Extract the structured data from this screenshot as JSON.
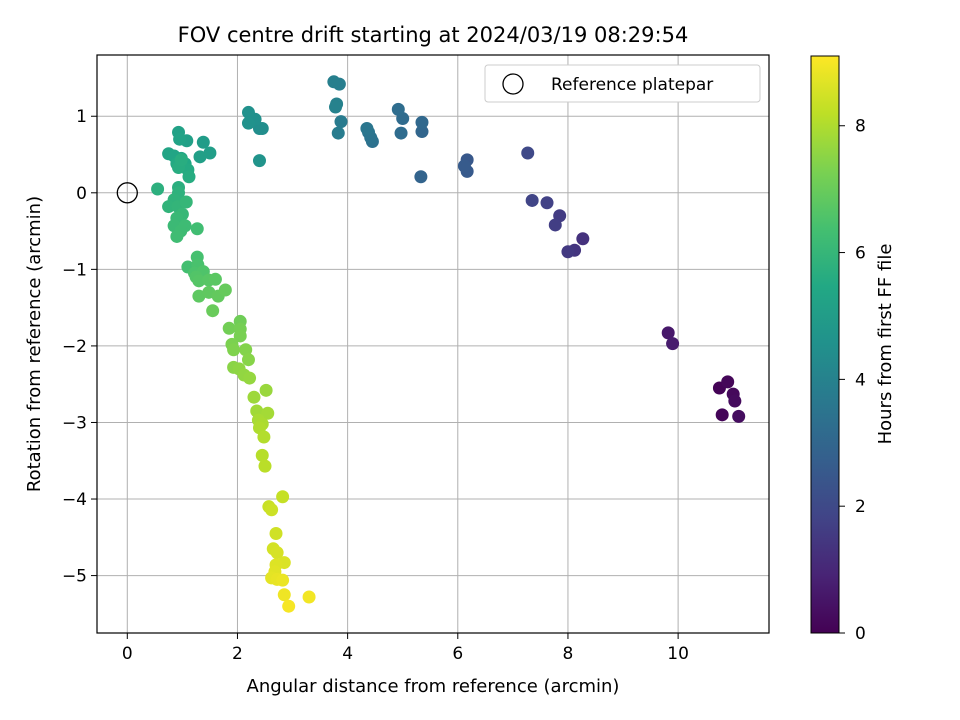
{
  "chart_data": {
    "type": "scatter",
    "title": "FOV centre drift starting at 2024/03/19 08:29:54",
    "xlabel": "Angular distance from reference (arcmin)",
    "ylabel": "Rotation from reference (arcmin)",
    "xlim": [
      -0.55,
      11.65
    ],
    "ylim": [
      -5.75,
      1.8
    ],
    "xticks": [
      0,
      2,
      4,
      6,
      8,
      10
    ],
    "yticks": [
      -5,
      -4,
      -3,
      -2,
      -1,
      0,
      1
    ],
    "grid": true,
    "legend": {
      "label": "Reference platepar",
      "placement": "top-right"
    },
    "reference_point": {
      "x": 0,
      "y": 0
    },
    "colorbar": {
      "label": "Hours from first FF file",
      "range": [
        0,
        9.1
      ],
      "ticks": [
        0,
        2,
        4,
        6,
        8
      ],
      "colormap": "viridis"
    },
    "points": [
      {
        "x": 10.75,
        "y": -2.55,
        "t": 0.05
      },
      {
        "x": 10.8,
        "y": -2.9,
        "t": 0.1
      },
      {
        "x": 10.9,
        "y": -2.47,
        "t": 0.15
      },
      {
        "x": 11.0,
        "y": -2.63,
        "t": 0.2
      },
      {
        "x": 11.03,
        "y": -2.72,
        "t": 0.25
      },
      {
        "x": 11.1,
        "y": -2.92,
        "t": 0.3
      },
      {
        "x": 9.82,
        "y": -1.83,
        "t": 0.6
      },
      {
        "x": 9.9,
        "y": -1.97,
        "t": 0.7
      },
      {
        "x": 8.27,
        "y": -0.6,
        "t": 1.3
      },
      {
        "x": 8.12,
        "y": -0.75,
        "t": 1.4
      },
      {
        "x": 8.0,
        "y": -0.77,
        "t": 1.5
      },
      {
        "x": 7.85,
        "y": -0.3,
        "t": 1.6
      },
      {
        "x": 7.77,
        "y": -0.42,
        "t": 1.65
      },
      {
        "x": 7.62,
        "y": -0.13,
        "t": 1.75
      },
      {
        "x": 7.35,
        "y": -0.1,
        "t": 1.85
      },
      {
        "x": 7.27,
        "y": 0.52,
        "t": 2.0
      },
      {
        "x": 6.17,
        "y": 0.43,
        "t": 2.5
      },
      {
        "x": 6.17,
        "y": 0.28,
        "t": 2.55
      },
      {
        "x": 6.12,
        "y": 0.35,
        "t": 2.6
      },
      {
        "x": 5.33,
        "y": 0.21,
        "t": 2.9
      },
      {
        "x": 5.35,
        "y": 0.8,
        "t": 3.0
      },
      {
        "x": 5.35,
        "y": 0.92,
        "t": 3.05
      },
      {
        "x": 5.0,
        "y": 0.97,
        "t": 3.15
      },
      {
        "x": 4.97,
        "y": 0.78,
        "t": 3.2
      },
      {
        "x": 4.92,
        "y": 1.09,
        "t": 3.25
      },
      {
        "x": 4.45,
        "y": 0.67,
        "t": 3.4
      },
      {
        "x": 4.42,
        "y": 0.72,
        "t": 3.45
      },
      {
        "x": 4.38,
        "y": 0.79,
        "t": 3.5
      },
      {
        "x": 4.35,
        "y": 0.84,
        "t": 3.55
      },
      {
        "x": 3.88,
        "y": 0.93,
        "t": 3.75
      },
      {
        "x": 3.83,
        "y": 0.78,
        "t": 3.8
      },
      {
        "x": 3.85,
        "y": 1.42,
        "t": 3.85
      },
      {
        "x": 3.75,
        "y": 1.45,
        "t": 3.9
      },
      {
        "x": 3.8,
        "y": 1.16,
        "t": 3.95
      },
      {
        "x": 3.78,
        "y": 1.12,
        "t": 4.0
      },
      {
        "x": 2.4,
        "y": 0.84,
        "t": 4.4
      },
      {
        "x": 2.45,
        "y": 0.84,
        "t": 4.45
      },
      {
        "x": 2.32,
        "y": 0.96,
        "t": 4.5
      },
      {
        "x": 2.2,
        "y": 1.05,
        "t": 4.55
      },
      {
        "x": 2.2,
        "y": 0.91,
        "t": 4.6
      },
      {
        "x": 2.4,
        "y": 0.42,
        "t": 4.65
      },
      {
        "x": 1.38,
        "y": 0.66,
        "t": 5.0
      },
      {
        "x": 1.5,
        "y": 0.52,
        "t": 5.05
      },
      {
        "x": 1.32,
        "y": 0.47,
        "t": 5.1
      },
      {
        "x": 1.08,
        "y": 0.68,
        "t": 5.15
      },
      {
        "x": 0.93,
        "y": 0.79,
        "t": 5.2
      },
      {
        "x": 0.95,
        "y": 0.7,
        "t": 5.25
      },
      {
        "x": 0.75,
        "y": 0.51,
        "t": 5.3
      },
      {
        "x": 0.85,
        "y": 0.48,
        "t": 5.35
      },
      {
        "x": 0.98,
        "y": 0.45,
        "t": 5.4
      },
      {
        "x": 1.05,
        "y": 0.38,
        "t": 5.45
      },
      {
        "x": 0.9,
        "y": 0.38,
        "t": 5.5
      },
      {
        "x": 1.1,
        "y": 0.3,
        "t": 5.55
      },
      {
        "x": 1.12,
        "y": 0.21,
        "t": 5.6
      },
      {
        "x": 0.93,
        "y": 0.33,
        "t": 5.62
      },
      {
        "x": 0.98,
        "y": 0.43,
        "t": 5.65
      },
      {
        "x": 0.93,
        "y": 0.07,
        "t": 5.7
      },
      {
        "x": 0.55,
        "y": 0.05,
        "t": 5.75
      },
      {
        "x": 0.93,
        "y": 0.0,
        "t": 5.8
      },
      {
        "x": 0.85,
        "y": -0.09,
        "t": 5.85
      },
      {
        "x": 0.75,
        "y": -0.18,
        "t": 5.9
      },
      {
        "x": 0.92,
        "y": -0.18,
        "t": 5.95
      },
      {
        "x": 1.07,
        "y": -0.12,
        "t": 6.0
      },
      {
        "x": 1.0,
        "y": -0.28,
        "t": 6.05
      },
      {
        "x": 0.9,
        "y": -0.33,
        "t": 6.1
      },
      {
        "x": 0.85,
        "y": -0.43,
        "t": 6.15
      },
      {
        "x": 1.05,
        "y": -0.43,
        "t": 6.2
      },
      {
        "x": 0.97,
        "y": -0.5,
        "t": 6.22
      },
      {
        "x": 0.9,
        "y": -0.57,
        "t": 6.25
      },
      {
        "x": 1.27,
        "y": -0.47,
        "t": 6.3
      },
      {
        "x": 1.1,
        "y": -0.97,
        "t": 6.35
      },
      {
        "x": 1.27,
        "y": -0.84,
        "t": 6.4
      },
      {
        "x": 1.28,
        "y": -0.94,
        "t": 6.45
      },
      {
        "x": 1.22,
        "y": -1.05,
        "t": 6.5
      },
      {
        "x": 1.38,
        "y": -1.03,
        "t": 6.55
      },
      {
        "x": 1.25,
        "y": -1.1,
        "t": 6.6
      },
      {
        "x": 1.3,
        "y": -1.15,
        "t": 6.65
      },
      {
        "x": 1.48,
        "y": -1.14,
        "t": 6.7
      },
      {
        "x": 1.6,
        "y": -1.13,
        "t": 6.75
      },
      {
        "x": 1.3,
        "y": -1.35,
        "t": 6.8
      },
      {
        "x": 1.48,
        "y": -1.3,
        "t": 6.85
      },
      {
        "x": 1.65,
        "y": -1.35,
        "t": 6.9
      },
      {
        "x": 1.78,
        "y": -1.27,
        "t": 6.95
      },
      {
        "x": 1.55,
        "y": -1.54,
        "t": 7.0
      },
      {
        "x": 2.05,
        "y": -1.68,
        "t": 7.1
      },
      {
        "x": 1.85,
        "y": -1.77,
        "t": 7.15
      },
      {
        "x": 2.05,
        "y": -1.78,
        "t": 7.2
      },
      {
        "x": 2.05,
        "y": -1.87,
        "t": 7.25
      },
      {
        "x": 1.9,
        "y": -1.98,
        "t": 7.3
      },
      {
        "x": 1.93,
        "y": -2.05,
        "t": 7.35
      },
      {
        "x": 2.15,
        "y": -2.05,
        "t": 7.4
      },
      {
        "x": 2.2,
        "y": -2.18,
        "t": 7.45
      },
      {
        "x": 1.93,
        "y": -2.28,
        "t": 7.5
      },
      {
        "x": 2.03,
        "y": -2.3,
        "t": 7.55
      },
      {
        "x": 2.12,
        "y": -2.38,
        "t": 7.6
      },
      {
        "x": 2.22,
        "y": -2.42,
        "t": 7.65
      },
      {
        "x": 2.52,
        "y": -2.58,
        "t": 7.7
      },
      {
        "x": 2.3,
        "y": -2.67,
        "t": 7.75
      },
      {
        "x": 2.35,
        "y": -2.85,
        "t": 7.8
      },
      {
        "x": 2.55,
        "y": -2.88,
        "t": 7.85
      },
      {
        "x": 2.38,
        "y": -2.97,
        "t": 7.9
      },
      {
        "x": 2.45,
        "y": -3.02,
        "t": 7.95
      },
      {
        "x": 2.4,
        "y": -3.07,
        "t": 8.0
      },
      {
        "x": 2.48,
        "y": -3.19,
        "t": 8.05
      },
      {
        "x": 2.45,
        "y": -3.43,
        "t": 8.1
      },
      {
        "x": 2.5,
        "y": -3.57,
        "t": 8.15
      },
      {
        "x": 2.82,
        "y": -3.97,
        "t": 8.3
      },
      {
        "x": 2.57,
        "y": -4.1,
        "t": 8.35
      },
      {
        "x": 2.62,
        "y": -4.14,
        "t": 8.4
      },
      {
        "x": 2.7,
        "y": -4.45,
        "t": 8.45
      },
      {
        "x": 2.65,
        "y": -4.65,
        "t": 8.5
      },
      {
        "x": 2.72,
        "y": -4.7,
        "t": 8.55
      },
      {
        "x": 2.85,
        "y": -4.83,
        "t": 8.6
      },
      {
        "x": 2.7,
        "y": -4.86,
        "t": 8.65
      },
      {
        "x": 2.68,
        "y": -4.95,
        "t": 8.7
      },
      {
        "x": 2.62,
        "y": -5.03,
        "t": 8.75
      },
      {
        "x": 2.72,
        "y": -5.05,
        "t": 8.8
      },
      {
        "x": 2.82,
        "y": -5.06,
        "t": 8.85
      },
      {
        "x": 2.85,
        "y": -5.25,
        "t": 8.9
      },
      {
        "x": 3.3,
        "y": -5.28,
        "t": 8.95
      },
      {
        "x": 2.93,
        "y": -5.4,
        "t": 9.0
      }
    ]
  }
}
